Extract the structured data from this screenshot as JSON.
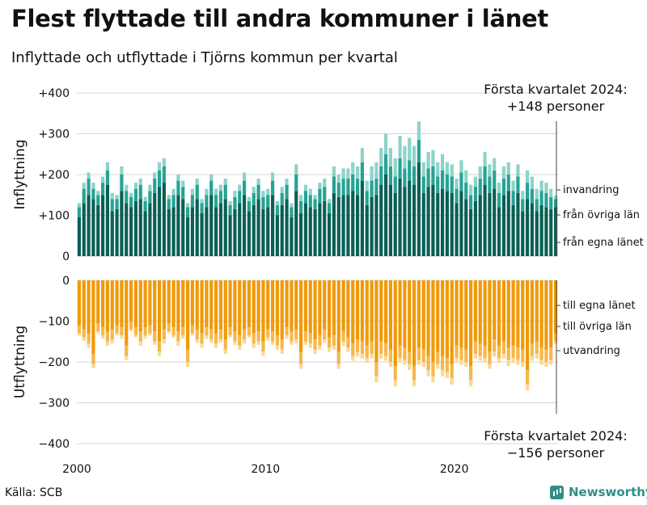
{
  "title": "Flest flyttade till andra kommuner i länet",
  "subtitle": "Inflyttade och utflyttade i Tjörns kommun per kvartal",
  "source": "Källa: SCB",
  "logo": "Newsworthy",
  "colors": {
    "in_egna": "#0b5f55",
    "in_ovriga": "#26a394",
    "in_invandring": "#8dd3c9",
    "out_egna": "#f09a0a",
    "out_ovriga": "#f6b74a",
    "out_utvandring": "#fbd89a",
    "grid": "#d6d6d6"
  },
  "chart_data": [
    {
      "type": "bar",
      "stacked": true,
      "panel": "Inflyttning",
      "ylabel": "Inflyttning",
      "ylim": [
        0,
        400
      ],
      "yticks": [
        0,
        100,
        200,
        300,
        400
      ],
      "ytick_labels": [
        "0",
        "+100",
        "+200",
        "+300",
        "+400"
      ],
      "xticks": [
        "2000",
        "2010",
        "2020"
      ],
      "start": "2000-Q1",
      "end": "2024-Q1",
      "annotation": [
        "Första kvartalet 2024:",
        "+148 personer"
      ],
      "series": [
        {
          "name": "från egna länet",
          "values": [
            95,
            130,
            150,
            140,
            125,
            150,
            175,
            110,
            115,
            160,
            130,
            120,
            135,
            140,
            110,
            130,
            155,
            170,
            180,
            115,
            120,
            150,
            140,
            95,
            120,
            140,
            105,
            120,
            150,
            120,
            130,
            140,
            100,
            115,
            130,
            150,
            110,
            125,
            140,
            115,
            120,
            150,
            100,
            125,
            140,
            95,
            160,
            105,
            130,
            120,
            115,
            130,
            135,
            105,
            155,
            145,
            150,
            150,
            160,
            150,
            185,
            125,
            145,
            150,
            175,
            200,
            175,
            155,
            190,
            170,
            185,
            175,
            230,
            155,
            170,
            175,
            155,
            165,
            160,
            155,
            130,
            160,
            140,
            115,
            135,
            150,
            175,
            155,
            165,
            120,
            150,
            160,
            125,
            155,
            110,
            140,
            130,
            110,
            125,
            120,
            115,
            120
          ]
        },
        {
          "name": "från övriga län",
          "values": [
            25,
            35,
            40,
            25,
            25,
            30,
            35,
            30,
            25,
            40,
            30,
            25,
            30,
            35,
            25,
            30,
            35,
            40,
            40,
            25,
            30,
            35,
            30,
            25,
            30,
            35,
            25,
            30,
            35,
            30,
            30,
            35,
            25,
            30,
            30,
            35,
            25,
            30,
            35,
            30,
            30,
            35,
            25,
            30,
            35,
            25,
            40,
            30,
            30,
            30,
            25,
            35,
            35,
            25,
            40,
            35,
            40,
            40,
            40,
            40,
            45,
            35,
            40,
            40,
            45,
            50,
            45,
            40,
            50,
            45,
            50,
            45,
            55,
            40,
            45,
            45,
            40,
            45,
            40,
            40,
            35,
            45,
            40,
            35,
            35,
            40,
            45,
            40,
            45,
            35,
            40,
            40,
            35,
            40,
            30,
            40,
            35,
            30,
            35,
            35,
            30,
            20
          ]
        },
        {
          "name": "invandring",
          "values": [
            10,
            15,
            15,
            15,
            10,
            15,
            20,
            15,
            10,
            20,
            15,
            10,
            15,
            15,
            10,
            15,
            15,
            20,
            20,
            10,
            15,
            15,
            15,
            10,
            15,
            15,
            10,
            15,
            15,
            15,
            15,
            15,
            10,
            15,
            15,
            20,
            10,
            15,
            15,
            15,
            15,
            20,
            10,
            15,
            15,
            10,
            25,
            15,
            15,
            15,
            10,
            15,
            20,
            10,
            25,
            20,
            25,
            25,
            30,
            30,
            35,
            25,
            35,
            40,
            45,
            50,
            45,
            45,
            55,
            55,
            55,
            50,
            45,
            35,
            40,
            40,
            35,
            40,
            30,
            30,
            25,
            30,
            30,
            25,
            25,
            30,
            35,
            30,
            30,
            25,
            30,
            30,
            25,
            30,
            20,
            30,
            30,
            25,
            25,
            25,
            20,
            8
          ]
        }
      ]
    },
    {
      "type": "bar",
      "stacked": true,
      "panel": "Utflyttning",
      "ylabel": "Utflyttning",
      "ylim": [
        -400,
        0
      ],
      "yticks": [
        0,
        -100,
        -200,
        -300,
        -400
      ],
      "ytick_labels": [
        "0",
        "−100",
        "−200",
        "−300",
        "−400"
      ],
      "xticks": [
        "2000",
        "2010",
        "2020"
      ],
      "start": "2000-Q1",
      "end": "2024-Q1",
      "annotation": [
        "Första kvartalet 2024:",
        "−156 personer"
      ],
      "series": [
        {
          "name": "till egna länet",
          "values": [
            -110,
            -120,
            -130,
            -180,
            -105,
            -115,
            -125,
            -120,
            -110,
            -115,
            -160,
            -100,
            -115,
            -125,
            -115,
            -110,
            -125,
            -150,
            -120,
            -105,
            -115,
            -125,
            -115,
            -170,
            -110,
            -120,
            -130,
            -115,
            -120,
            -130,
            -120,
            -145,
            -115,
            -125,
            -135,
            -120,
            -115,
            -130,
            -125,
            -150,
            -120,
            -125,
            -135,
            -145,
            -115,
            -125,
            -120,
            -175,
            -125,
            -130,
            -145,
            -135,
            -120,
            -140,
            -135,
            -175,
            -125,
            -140,
            -155,
            -145,
            -150,
            -160,
            -150,
            -200,
            -150,
            -155,
            -170,
            -210,
            -160,
            -165,
            -175,
            -210,
            -165,
            -170,
            -185,
            -200,
            -175,
            -185,
            -190,
            -205,
            -160,
            -165,
            -170,
            -210,
            -150,
            -155,
            -160,
            -175,
            -145,
            -160,
            -150,
            -165,
            -160,
            -165,
            -170,
            -220,
            -155,
            -150,
            -165,
            -170,
            -165,
            -130
          ]
        },
        {
          "name": "till övriga län",
          "values": [
            -20,
            -20,
            -25,
            -25,
            -20,
            -20,
            -25,
            -25,
            -20,
            -20,
            -25,
            -20,
            -20,
            -25,
            -20,
            -20,
            -25,
            -25,
            -25,
            -20,
            -20,
            -25,
            -20,
            -30,
            -20,
            -25,
            -25,
            -20,
            -25,
            -25,
            -25,
            -25,
            -20,
            -25,
            -25,
            -25,
            -20,
            -25,
            -25,
            -25,
            -20,
            -25,
            -25,
            -25,
            -20,
            -25,
            -25,
            -30,
            -25,
            -25,
            -25,
            -25,
            -25,
            -25,
            -25,
            -30,
            -25,
            -25,
            -30,
            -30,
            -30,
            -30,
            -30,
            -35,
            -30,
            -30,
            -30,
            -35,
            -30,
            -30,
            -30,
            -35,
            -30,
            -30,
            -35,
            -35,
            -30,
            -35,
            -35,
            -35,
            -30,
            -30,
            -30,
            -35,
            -30,
            -30,
            -30,
            -30,
            -30,
            -30,
            -30,
            -30,
            -30,
            -30,
            -30,
            -35,
            -30,
            -30,
            -30,
            -30,
            -30,
            -20
          ]
        },
        {
          "name": "utvandring",
          "values": [
            -5,
            -8,
            -10,
            -10,
            -5,
            -8,
            -10,
            -10,
            -5,
            -8,
            -10,
            -5,
            -5,
            -10,
            -8,
            -5,
            -8,
            -10,
            -10,
            -5,
            -5,
            -10,
            -8,
            -12,
            -5,
            -8,
            -10,
            -8,
            -8,
            -10,
            -8,
            -10,
            -5,
            -8,
            -10,
            -10,
            -5,
            -10,
            -8,
            -10,
            -8,
            -8,
            -10,
            -10,
            -8,
            -8,
            -10,
            -12,
            -8,
            -10,
            -10,
            -10,
            -8,
            -10,
            -10,
            -12,
            -10,
            -10,
            -12,
            -12,
            -12,
            -12,
            -12,
            -15,
            -12,
            -12,
            -12,
            -15,
            -12,
            -12,
            -15,
            -15,
            -12,
            -12,
            -15,
            -15,
            -12,
            -15,
            -15,
            -15,
            -12,
            -12,
            -12,
            -15,
            -12,
            -12,
            -12,
            -12,
            -12,
            -12,
            -12,
            -15,
            -12,
            -12,
            -12,
            -15,
            -12,
            -12,
            -12,
            -12,
            -12,
            -6
          ]
        }
      ]
    }
  ]
}
